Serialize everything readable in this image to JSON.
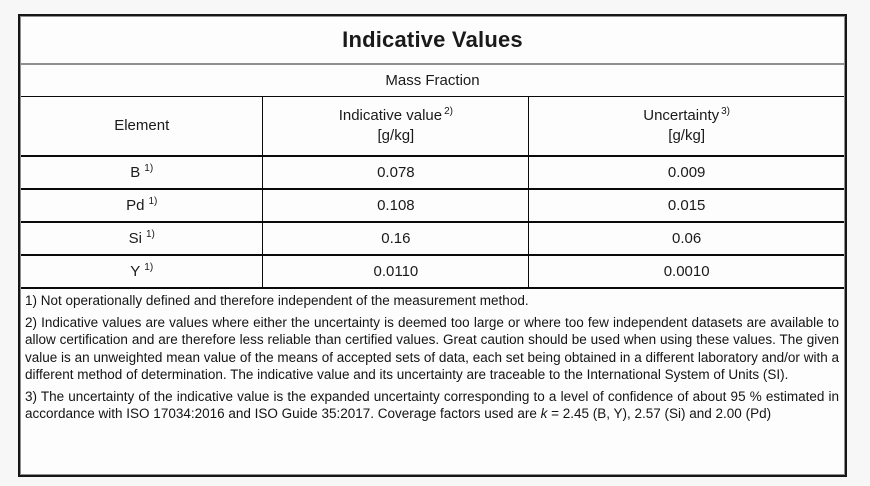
{
  "table": {
    "title": "Indicative Values",
    "subtitle": "Mass Fraction",
    "columns": {
      "element": {
        "label": "Element"
      },
      "indicative": {
        "label": "Indicative value",
        "sup": "2)",
        "unit": "[g/kg]"
      },
      "uncertainty": {
        "label": "Uncertainty",
        "sup": "3)",
        "unit": "[g/kg]"
      }
    },
    "rows": [
      {
        "element": "B",
        "sup": "1)",
        "indicative": "0.078",
        "uncertainty": "0.009"
      },
      {
        "element": "Pd",
        "sup": "1)",
        "indicative": "0.108",
        "uncertainty": "0.015"
      },
      {
        "element": "Si",
        "sup": "1)",
        "indicative": "0.16",
        "uncertainty": "0.06"
      },
      {
        "element": "Y",
        "sup": "1)",
        "indicative": "0.0110",
        "uncertainty": "0.0010"
      }
    ],
    "footnotes": {
      "note1": "1) Not operationally defined and therefore independent of the measurement method.",
      "note2": "2) Indicative values are values where either the uncertainty is deemed too large or where too few independent datasets are available to allow certification and are therefore less reliable than certified values. Great caution should be used when using these values. The given value is an unweighted mean value of the means of accepted sets of data, each set being obtained in a different laboratory and/or with a different method of determination. The indicative value and its uncertainty are traceable to the International System of Units (SI).",
      "note3_before": "3) The uncertainty of the indicative value is the expanded uncertainty corresponding to a level of confidence of about 95 % estimated in accordance with ISO 17034:2016 and ISO Guide 35:2017. Coverage factors used are ",
      "note3_italic": "k",
      "note3_after": " = 2.45 (B, Y), 2.57 (Si) and 2.00 (Pd)"
    }
  },
  "colors": {
    "page_background": "#f7f7f7",
    "table_background": "#fdfdfd",
    "border_dark": "#161616",
    "border_gray": "#8f8f8f",
    "text": "#1a1a1a"
  }
}
